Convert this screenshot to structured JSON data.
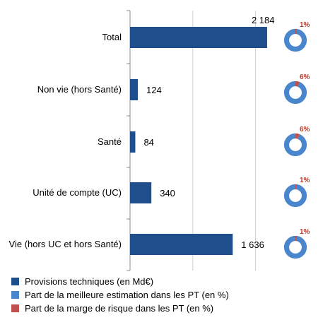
{
  "chart_data": {
    "type": "bar",
    "orientation": "horizontal",
    "categories": [
      "Total",
      "Non vie (hors Santé)",
      "Santé",
      "Unité de compte (UC)",
      "Vie (hors UC et hors Santé)"
    ],
    "series": [
      {
        "name": "Provisions techniques (en Md€)",
        "values": [
          2184,
          124,
          84,
          340,
          1636
        ],
        "value_labels": [
          "2 184",
          "124",
          "84",
          "340",
          "1 636"
        ]
      },
      {
        "name": "Part de la meilleure estimation dans les PT (en %)",
        "values": [
          99,
          94,
          94,
          99,
          99
        ]
      },
      {
        "name": "Part de la marge de risque dans les PT (en %)",
        "values": [
          1,
          6,
          6,
          1,
          1
        ],
        "value_labels": [
          "1%",
          "6%",
          "6%",
          "1%",
          "1%"
        ]
      }
    ],
    "xlim": [
      0,
      2500
    ],
    "grid": true,
    "legend_position": "bottom-left",
    "colors": {
      "bar": "#1f4e8c",
      "best_estimate": "#4a86cc",
      "risk_margin": "#c0504d",
      "pct_label": "#c0392b",
      "grid": "#cfcfcf",
      "axis": "#8c8c8c"
    }
  }
}
